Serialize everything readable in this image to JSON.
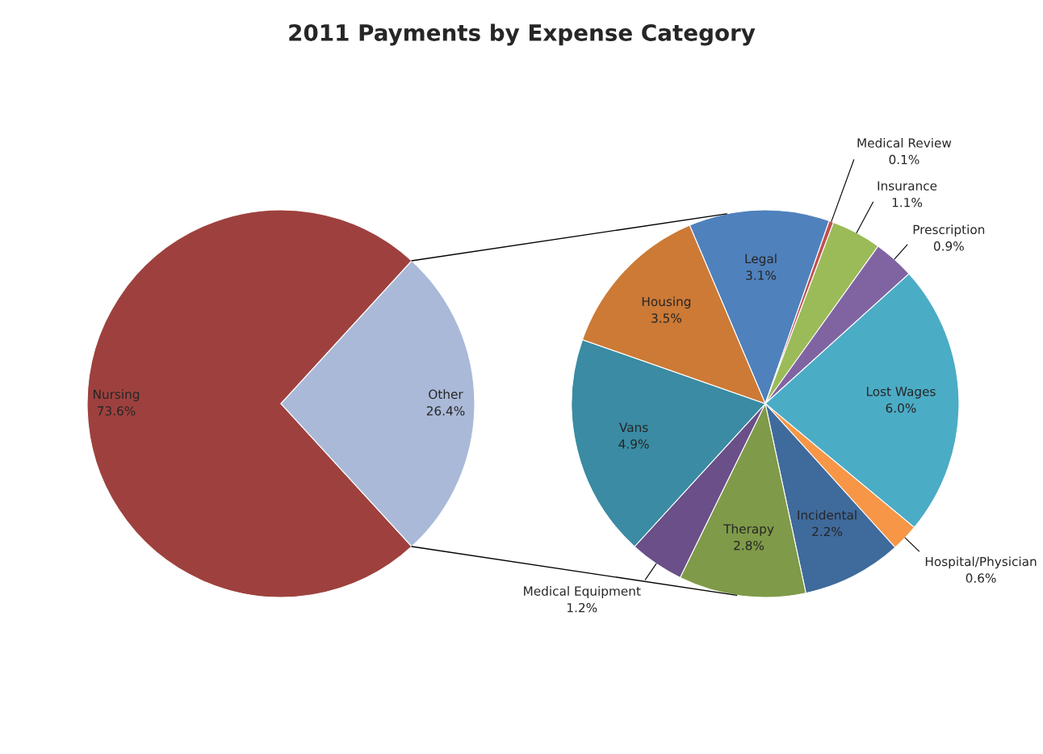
{
  "chart_data": [
    {
      "type": "pie",
      "title": "2011 Payments by Expense Category",
      "categories": [
        "Nursing",
        "Other"
      ],
      "values": [
        73.6,
        26.4
      ],
      "colors": [
        "#9e413e",
        "#aab9d8"
      ],
      "value_labels": [
        "73.6%",
        "26.4%"
      ]
    },
    {
      "type": "pie",
      "categories": [
        "Legal",
        "Medical Review",
        "Insurance",
        "Prescription",
        "Lost Wages",
        "Hospital/Physician",
        "Incidental",
        "Therapy",
        "Medical Equipment",
        "Vans",
        "Housing"
      ],
      "values": [
        3.1,
        0.1,
        1.1,
        0.9,
        6.0,
        0.6,
        2.2,
        2.8,
        1.2,
        4.9,
        3.5
      ],
      "colors": [
        "#4f81bd",
        "#c0504d",
        "#9bbb59",
        "#8064a2",
        "#4bacc6",
        "#f79646",
        "#3f6a9c",
        "#7f9a48",
        "#6a4f88",
        "#3a8ba3",
        "#cc7a36"
      ],
      "value_labels": [
        "3.1%",
        "0.1%",
        "1.1%",
        "0.9%",
        "6.0%",
        "0.6%",
        "2.2%",
        "2.8%",
        "1.2%",
        "4.9%",
        "3.5%"
      ]
    }
  ]
}
